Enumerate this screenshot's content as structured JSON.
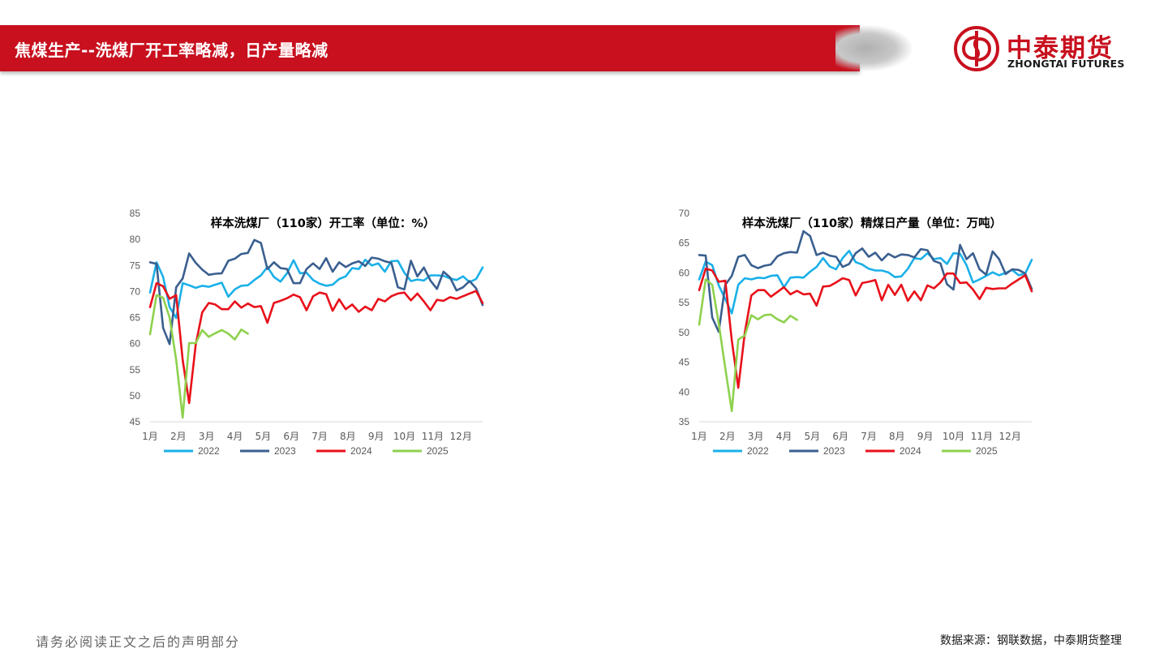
{
  "header": {
    "title": "焦煤生产--洗煤厂开工率略减，日产量略减",
    "logo_cn": "中泰期货",
    "logo_en": "ZHONGTAI FUTURES"
  },
  "footer": {
    "disclaimer": "请务必阅读正文之后的声明部分",
    "source": "数据来源：钢联数据，中泰期货整理"
  },
  "colors": {
    "brand_red": "#c8101e",
    "s2022": "#1ab0e8",
    "s2023": "#3a5f8f",
    "s2024": "#e8101a",
    "s2025": "#8ed14d"
  },
  "chart_data": [
    {
      "type": "line",
      "title": "样本洗煤厂（110家）开工率（单位：%）",
      "xlabel": "",
      "ylabel": "",
      "ylim": [
        45,
        85
      ],
      "yticks": [
        45,
        50,
        55,
        60,
        65,
        70,
        75,
        80,
        85
      ],
      "x_tick_labels": [
        "1月",
        "2月",
        "3月",
        "4月",
        "5月",
        "6月",
        "7月",
        "8月",
        "9月",
        "10月",
        "11月",
        "12月"
      ],
      "grid": false,
      "legend_position": "bottom",
      "series": [
        {
          "name": "2022",
          "color": "#1ab0e8",
          "x": [
            1,
            2,
            3,
            4,
            5,
            6,
            7,
            8,
            9,
            10,
            11,
            12,
            13,
            14,
            15,
            16,
            17,
            18,
            19,
            20,
            21,
            22,
            23,
            24,
            25,
            26,
            27,
            28,
            29,
            30,
            31,
            32,
            33,
            34,
            35,
            36,
            37,
            38,
            39,
            40,
            41,
            42,
            43,
            44,
            45,
            46,
            47,
            48,
            49,
            50,
            51,
            52
          ],
          "values": [
            69.8,
            75.6,
            72.8,
            67.0,
            64.9,
            71.6,
            71.2,
            70.7,
            71.1,
            70.9,
            71.3,
            71.7,
            69.0,
            70.4,
            71.1,
            71.2,
            72.2,
            73.1,
            74.7,
            72.8,
            71.9,
            73.5,
            76.0,
            73.5,
            73.6,
            72.2,
            71.5,
            71.1,
            71.3,
            72.4,
            72.9,
            74.5,
            74.3,
            76.1,
            75.0,
            75.4,
            73.8,
            75.8,
            75.9,
            73.6,
            72.0,
            72.3,
            72.1,
            73.1,
            73.1,
            73.0,
            72.5,
            72.2,
            72.9,
            71.8,
            72.4,
            74.6
          ]
        },
        {
          "name": "2023",
          "color": "#3a5f8f",
          "x": [
            1,
            2,
            3,
            4,
            5,
            6,
            7,
            8,
            9,
            10,
            11,
            12,
            13,
            14,
            15,
            16,
            17,
            18,
            19,
            20,
            21,
            22,
            23,
            24,
            25,
            26,
            27,
            28,
            29,
            30,
            31,
            32,
            33,
            34,
            35,
            36,
            37,
            38,
            39,
            40,
            41,
            42,
            43,
            44,
            45,
            46,
            47,
            48,
            49,
            50,
            51,
            52
          ],
          "values": [
            75.6,
            75.3,
            63.0,
            59.9,
            70.8,
            72.5,
            77.3,
            75.5,
            74.2,
            73.2,
            73.4,
            73.5,
            75.9,
            76.3,
            77.2,
            77.4,
            79.9,
            79.3,
            74.3,
            75.6,
            74.5,
            74.3,
            71.6,
            71.6,
            74.3,
            75.4,
            74.3,
            76.4,
            73.8,
            75.6,
            74.7,
            75.4,
            75.8,
            74.9,
            76.5,
            76.3,
            75.8,
            75.5,
            70.8,
            70.4,
            75.9,
            72.9,
            74.6,
            72.1,
            70.5,
            73.8,
            72.7,
            70.2,
            70.8,
            72.0,
            70.6,
            67.4
          ]
        },
        {
          "name": "2024",
          "color": "#e8101a",
          "x": [
            1,
            2,
            3,
            4,
            5,
            6,
            7,
            8,
            9,
            10,
            11,
            12,
            13,
            14,
            15,
            16,
            17,
            18,
            19,
            20,
            21,
            22,
            23,
            24,
            25,
            26,
            27,
            28,
            29,
            30,
            31,
            32,
            33,
            34,
            35,
            36,
            37,
            38,
            39,
            40,
            41,
            42,
            43,
            44,
            45,
            46,
            47,
            48,
            49,
            50,
            51,
            52
          ],
          "values": [
            67.0,
            71.6,
            71.0,
            68.6,
            69.3,
            56.9,
            48.6,
            59.8,
            66.0,
            67.8,
            67.5,
            66.6,
            66.6,
            68.1,
            66.9,
            67.7,
            67.0,
            67.2,
            64.0,
            67.8,
            68.2,
            68.7,
            69.4,
            68.9,
            66.4,
            69.1,
            69.8,
            69.5,
            66.3,
            68.5,
            66.6,
            67.5,
            66.1,
            67.1,
            66.4,
            68.6,
            68.1,
            69.1,
            69.6,
            69.8,
            68.3,
            69.6,
            68.1,
            66.4,
            68.4,
            68.2,
            68.9,
            68.6,
            69.1,
            69.6,
            70.1,
            67.8
          ]
        },
        {
          "name": "2025",
          "color": "#8ed14d",
          "x": [
            1,
            2,
            3,
            4,
            5,
            6,
            7,
            8,
            9,
            10,
            11,
            12,
            13,
            14,
            15,
            16
          ],
          "values": [
            61.8,
            69.3,
            68.8,
            65.0,
            56.9,
            45.8,
            60.1,
            60.1,
            62.6,
            61.3,
            62.0,
            62.6,
            61.9,
            60.8,
            62.7,
            61.9
          ]
        }
      ]
    },
    {
      "type": "line",
      "title": "样本洗煤厂（110家）精煤日产量（单位：万吨）",
      "xlabel": "",
      "ylabel": "",
      "ylim": [
        35,
        70
      ],
      "yticks": [
        35,
        40,
        45,
        50,
        55,
        60,
        65,
        70
      ],
      "x_tick_labels": [
        "1月",
        "2月",
        "3月",
        "4月",
        "5月",
        "6月",
        "7月",
        "8月",
        "9月",
        "10月",
        "11月",
        "12月"
      ],
      "grid": false,
      "legend_position": "bottom",
      "series": [
        {
          "name": "2022",
          "color": "#1ab0e8",
          "x": [
            1,
            2,
            3,
            4,
            5,
            6,
            7,
            8,
            9,
            10,
            11,
            12,
            13,
            14,
            15,
            16,
            17,
            18,
            19,
            20,
            21,
            22,
            23,
            24,
            25,
            26,
            27,
            28,
            29,
            30,
            31,
            32,
            33,
            34,
            35,
            36,
            37,
            38,
            39,
            40,
            41,
            42,
            43,
            44,
            45,
            46,
            47,
            48,
            49,
            50,
            51,
            52
          ],
          "values": [
            58.9,
            61.9,
            61.3,
            57.9,
            55.6,
            53.2,
            58.0,
            59.1,
            58.9,
            59.2,
            59.1,
            59.5,
            59.6,
            57.6,
            59.2,
            59.3,
            59.2,
            60.2,
            61.0,
            62.5,
            61.1,
            60.6,
            62.5,
            63.7,
            61.8,
            61.4,
            60.7,
            60.4,
            60.4,
            60.1,
            59.3,
            59.4,
            60.7,
            62.5,
            62.3,
            63.3,
            62.3,
            62.5,
            61.5,
            63.3,
            63.2,
            61.3,
            58.4,
            58.9,
            59.5,
            60.1,
            59.6,
            60.0,
            60.5,
            59.6,
            59.9,
            62.2
          ]
        },
        {
          "name": "2023",
          "color": "#3a5f8f",
          "x": [
            1,
            2,
            3,
            4,
            5,
            6,
            7,
            8,
            9,
            10,
            11,
            12,
            13,
            14,
            15,
            16,
            17,
            18,
            19,
            20,
            21,
            22,
            23,
            24,
            25,
            26,
            27,
            28,
            29,
            30,
            31,
            32,
            33,
            34,
            35,
            36,
            37,
            38,
            39,
            40,
            41,
            42,
            43,
            44,
            45,
            46,
            47,
            48,
            49,
            50,
            51,
            52
          ],
          "values": [
            63.0,
            62.9,
            52.5,
            50.1,
            58.0,
            59.5,
            62.7,
            63.0,
            61.3,
            60.8,
            61.2,
            61.4,
            62.8,
            63.3,
            63.5,
            63.4,
            67.0,
            66.2,
            63.0,
            63.4,
            62.9,
            62.7,
            61.0,
            61.5,
            63.3,
            64.1,
            62.7,
            63.4,
            62.1,
            63.2,
            62.6,
            63.1,
            63.0,
            62.6,
            64.0,
            63.8,
            62.0,
            61.6,
            58.1,
            57.2,
            64.7,
            62.3,
            63.3,
            60.6,
            59.7,
            63.6,
            62.3,
            59.8,
            60.6,
            60.5,
            59.9,
            57.3
          ]
        },
        {
          "name": "2024",
          "color": "#e8101a",
          "x": [
            1,
            2,
            3,
            4,
            5,
            6,
            7,
            8,
            9,
            10,
            11,
            12,
            13,
            14,
            15,
            16,
            17,
            18,
            19,
            20,
            21,
            22,
            23,
            24,
            25,
            26,
            27,
            28,
            29,
            30,
            31,
            32,
            33,
            34,
            35,
            36,
            37,
            38,
            39,
            40,
            41,
            42,
            43,
            44,
            45,
            46,
            47,
            48,
            49,
            50,
            51,
            52
          ],
          "values": [
            57.1,
            60.7,
            60.4,
            58.5,
            58.7,
            48.7,
            40.7,
            50.0,
            56.2,
            57.1,
            57.1,
            56.0,
            56.8,
            57.6,
            56.4,
            57.0,
            56.4,
            56.5,
            54.5,
            57.7,
            57.8,
            58.4,
            59.1,
            58.8,
            56.2,
            58.3,
            58.5,
            58.8,
            55.4,
            58.0,
            56.3,
            58.0,
            55.3,
            56.9,
            55.4,
            57.9,
            57.4,
            58.4,
            59.9,
            59.9,
            58.3,
            58.4,
            57.2,
            55.6,
            57.5,
            57.3,
            57.4,
            57.4,
            58.2,
            58.9,
            59.6,
            56.9
          ]
        },
        {
          "name": "2025",
          "color": "#8ed14d",
          "x": [
            1,
            2,
            3,
            4,
            5,
            6,
            7,
            8,
            9,
            10,
            11,
            12,
            13,
            14,
            15,
            16
          ],
          "values": [
            51.3,
            58.9,
            58.0,
            51.5,
            44.0,
            36.8,
            48.8,
            49.5,
            52.9,
            52.2,
            52.9,
            53.0,
            52.2,
            51.7,
            52.8,
            52.1
          ]
        }
      ]
    }
  ]
}
